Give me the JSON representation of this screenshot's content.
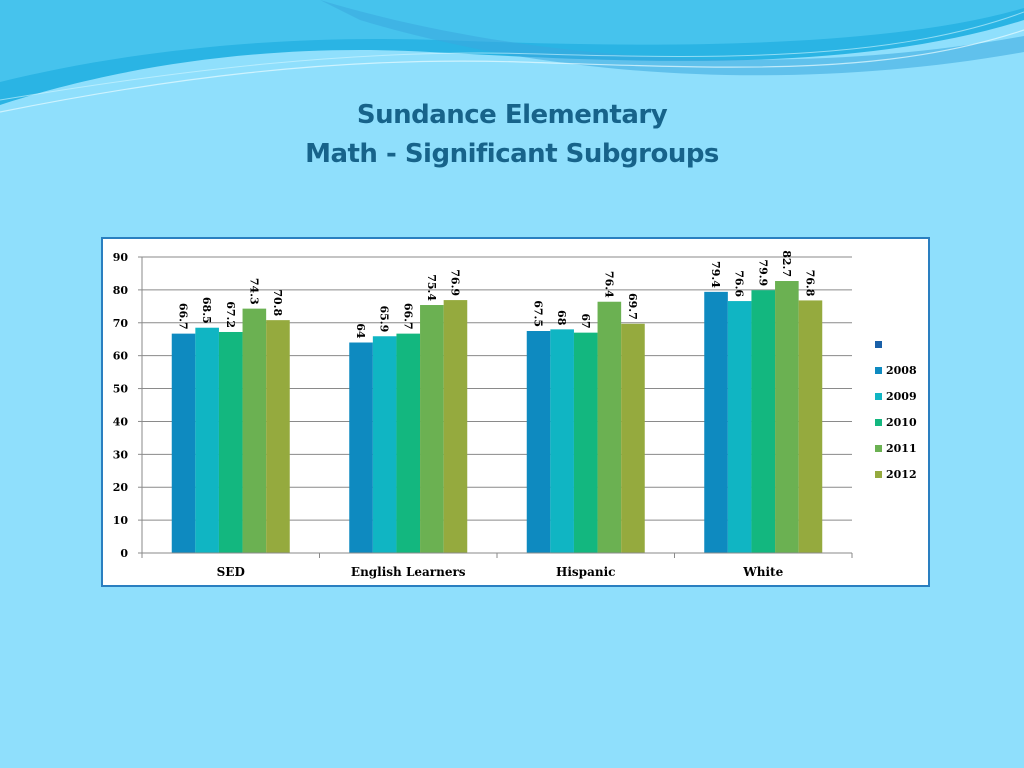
{
  "slide": {
    "title_line1": "Sundance Elementary",
    "title_line2": "Math - Significant Subgroups"
  },
  "colors": {
    "background": "#8fdffc",
    "title": "#17638a",
    "frame_border": "#2a7fc0"
  },
  "chart_data": {
    "type": "bar",
    "categories": [
      "SED",
      "English Learners",
      "Hispanic",
      "White"
    ],
    "series": [
      {
        "name": "2008",
        "color": "#0e8ac0",
        "values": [
          66.7,
          64,
          67.5,
          79.4
        ]
      },
      {
        "name": "2009",
        "color": "#10b5c3",
        "values": [
          68.5,
          65.9,
          68,
          76.6
        ]
      },
      {
        "name": "2010",
        "color": "#13b77f",
        "values": [
          67.2,
          66.7,
          67,
          79.9
        ]
      },
      {
        "name": "2011",
        "color": "#6bb152",
        "values": [
          74.3,
          75.4,
          76.4,
          82.7
        ]
      },
      {
        "name": "2012",
        "color": "#95aa3e",
        "values": [
          70.8,
          76.9,
          69.7,
          76.8
        ]
      }
    ],
    "legend_extra_marker_color": "#1a60a8",
    "ylim": [
      0,
      90
    ],
    "yticks": [
      0,
      10,
      20,
      30,
      40,
      50,
      60,
      70,
      80,
      90
    ],
    "grid": true,
    "legend_position": "right",
    "data_labels": true
  }
}
